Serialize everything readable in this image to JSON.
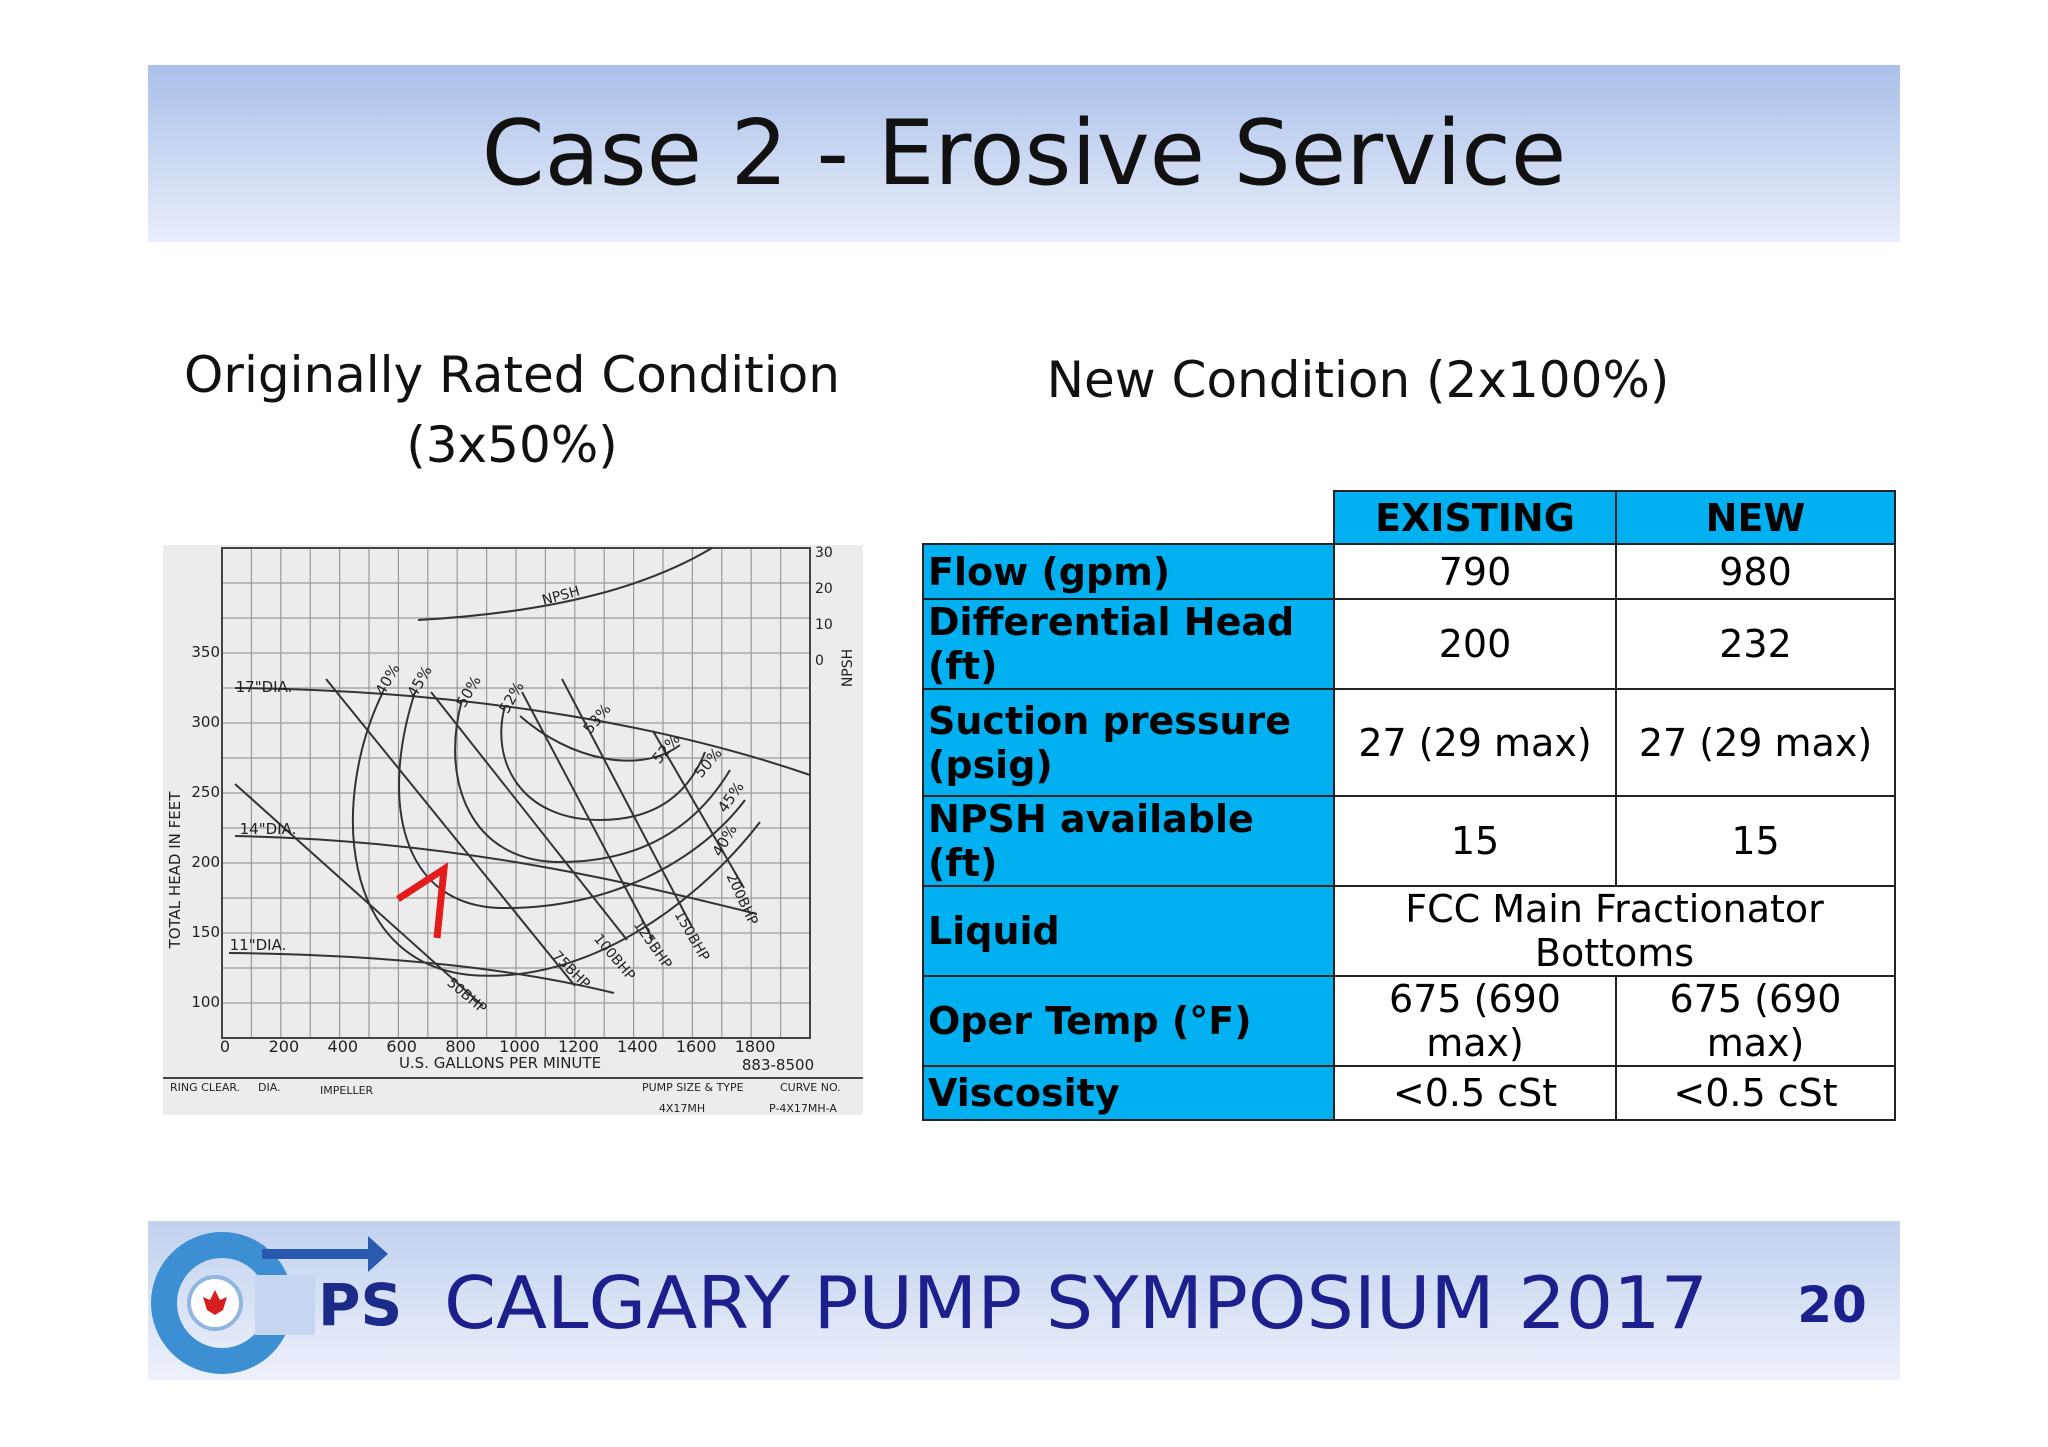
{
  "header": {
    "title": "Case 2 - Erosive Service"
  },
  "left": {
    "subtitle_lines": [
      "Originally Rated Condition",
      "(3x50%)"
    ]
  },
  "right": {
    "subtitle": "New Condition (2x100%)"
  },
  "pump_curve": {
    "y_ticks": [
      "350",
      "300",
      "250",
      "200",
      "150",
      "100"
    ],
    "x_ticks": [
      "0",
      "200",
      "400",
      "600",
      "800",
      "1000",
      "1200",
      "1400",
      "1600",
      "1800"
    ],
    "npsh_ticks": [
      "30",
      "20",
      "10",
      "0"
    ],
    "y_axis_label": "TOTAL HEAD IN FEET",
    "x_axis_label": "U.S. GALLONS PER MINUTE",
    "npsh_axis_label": "NPSH",
    "npsh_curve_label": "NPSH",
    "curve_id": "883-8500",
    "diameters": [
      "17\"DIA.",
      "14\"DIA.",
      "11\"DIA."
    ],
    "efficiency_labels": [
      "40%",
      "45%",
      "50%",
      "52%",
      "53%",
      "52%",
      "50%",
      "45%",
      "40%"
    ],
    "bhp_labels": [
      "50BHP",
      "75BHP",
      "100BHP",
      "125BHP",
      "150BHP",
      "200BHP"
    ],
    "title_block": [
      "RING CLEAR.",
      "DIA.",
      "IMPELLER",
      "PUMP SIZE & TYPE",
      "CURVE NO.",
      "4X17MH",
      "P-4X17MH-A"
    ]
  },
  "table": {
    "columns": [
      "EXISTING",
      "NEW"
    ],
    "rows": [
      [
        "Flow (gpm)",
        "790",
        "980"
      ],
      [
        "Differential Head (ft)",
        "200",
        "232"
      ],
      [
        "Suction pressure (psig)",
        "27 (29 max)",
        "27 (29 max)"
      ],
      [
        "NPSH available (ft)",
        "15",
        "15"
      ],
      [
        "Liquid",
        "FCC Main Fractionator Bottoms"
      ],
      [
        "Oper Temp (°F)",
        "675 (690 max)",
        "675 (690 max)"
      ],
      [
        "Viscosity",
        "<0.5 cSt",
        "<0.5 cSt"
      ]
    ]
  },
  "footer": {
    "logo_text": "PS",
    "symposium": "CALGARY PUMP SYMPOSIUM 2017",
    "page_number": "20"
  }
}
